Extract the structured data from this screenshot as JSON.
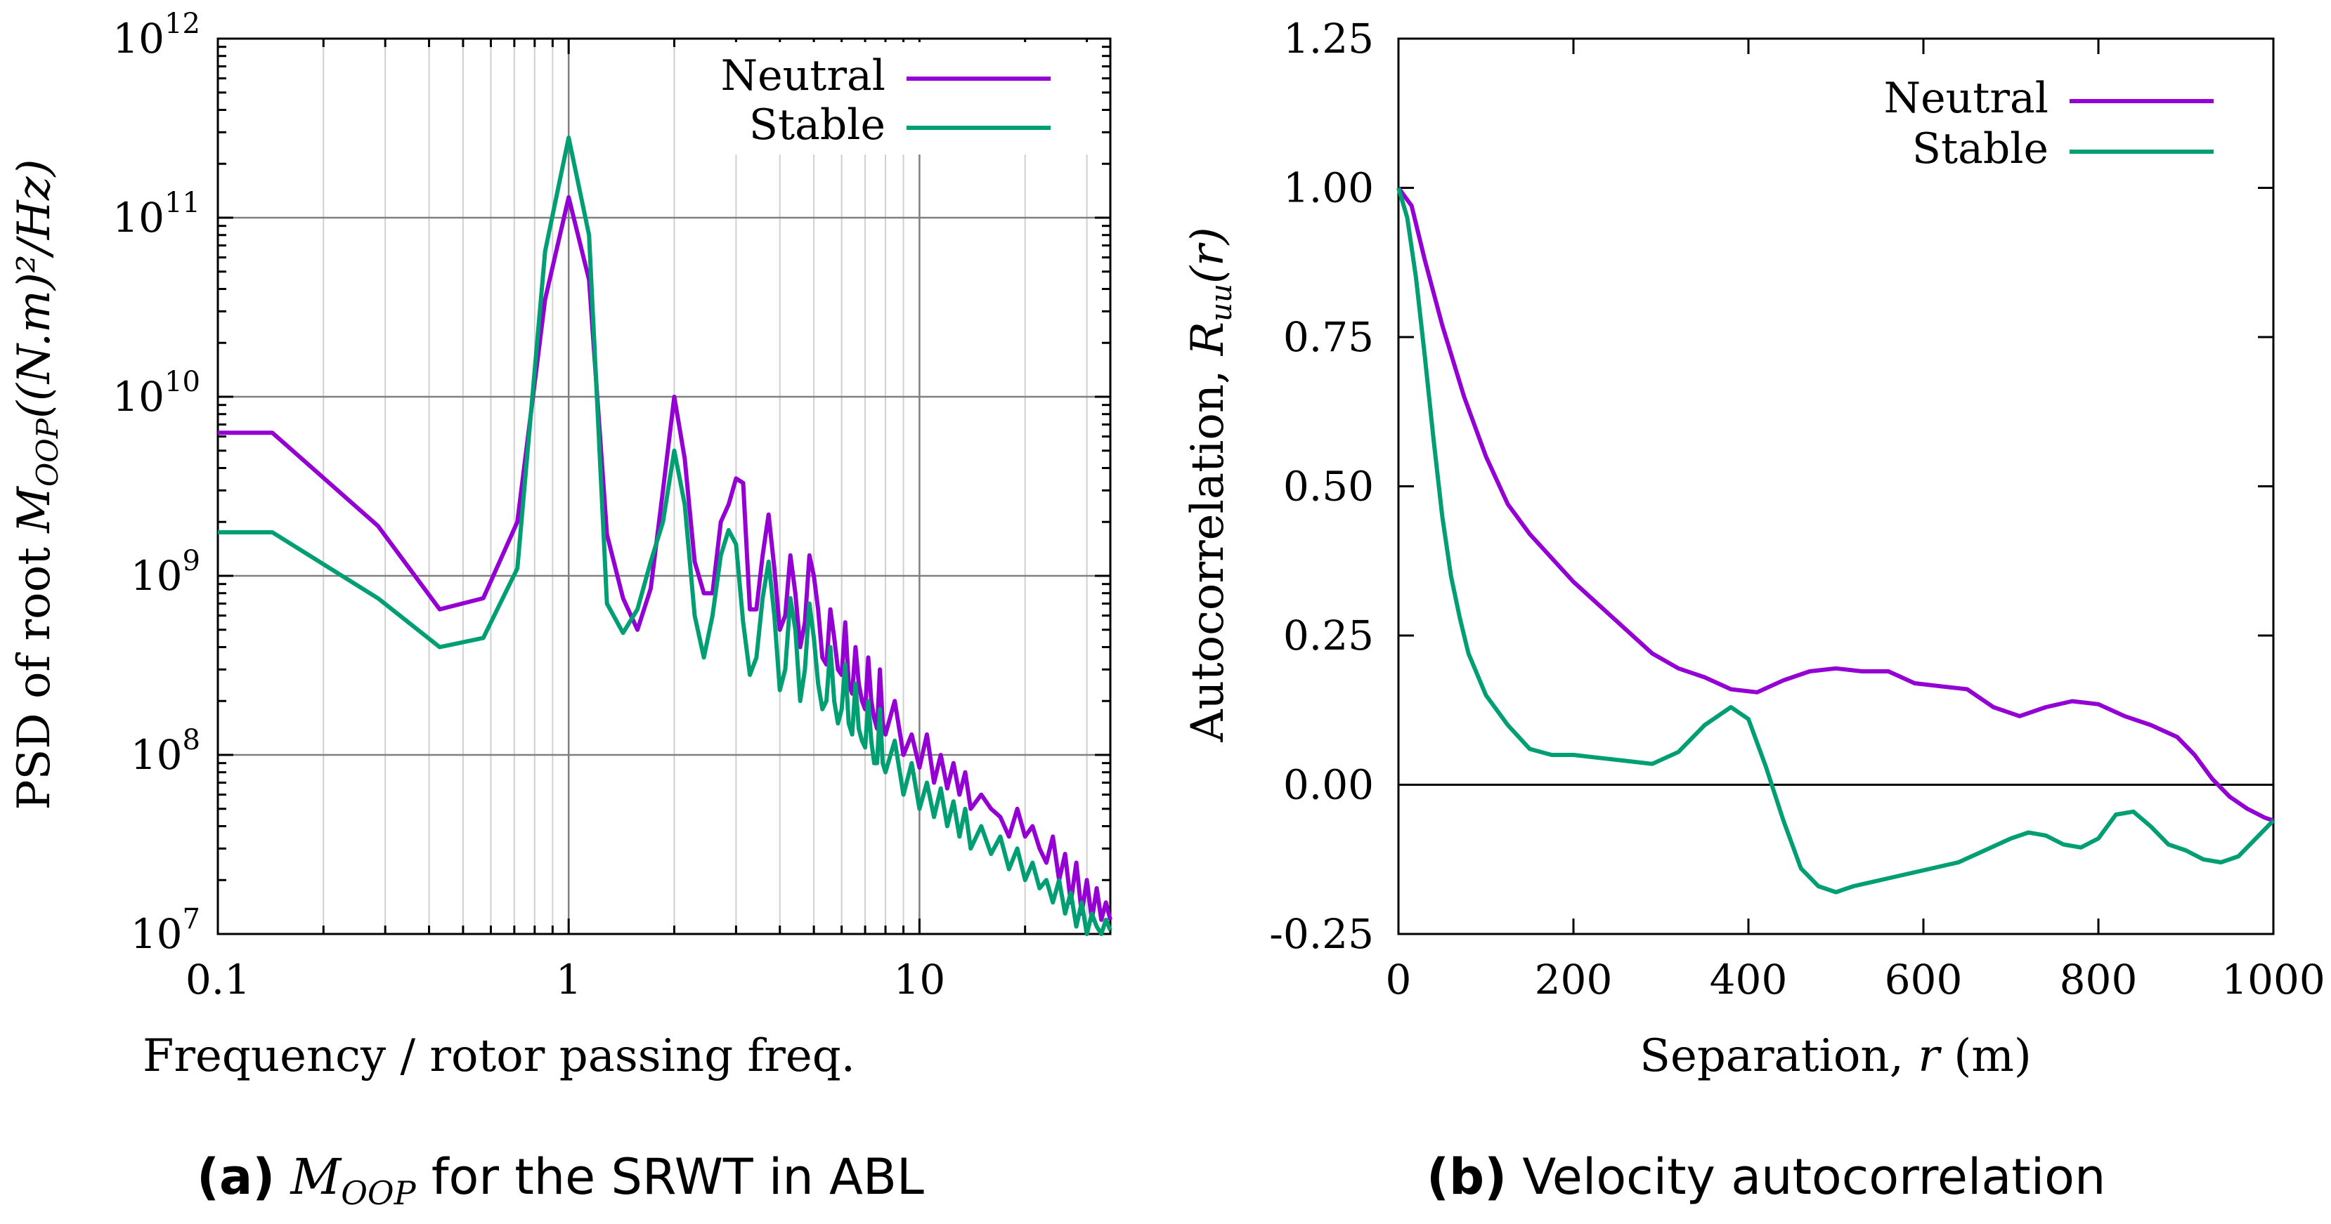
{
  "colors": {
    "neutral": "#9400d3",
    "stable": "#009e73",
    "grid": "#a0a0a0",
    "axis": "#000000"
  },
  "captions": {
    "a": {
      "tag": "(a)",
      "var": "M",
      "sub": "OOP",
      "text": "for the SRWT in ABL"
    },
    "b": {
      "tag": "(b)",
      "text": "Velocity autocorrelation"
    }
  },
  "chart_data": [
    {
      "type": "line",
      "xscale": "log",
      "yscale": "log",
      "xlabel": "Frequency / rotor passing freq.",
      "ylabel": {
        "prefix": "PSD of root ",
        "var": "M",
        "sub": "OOP",
        "unit": "((N.m)²/Hz)"
      },
      "xlim": [
        0.1,
        35
      ],
      "ylim": [
        10000000.0,
        1000000000000.0
      ],
      "xticks": [
        "0.1",
        "1",
        "10"
      ],
      "yticks": [
        {
          "base": "10",
          "exp": "7"
        },
        {
          "base": "10",
          "exp": "8"
        },
        {
          "base": "10",
          "exp": "9"
        },
        {
          "base": "10",
          "exp": "10"
        },
        {
          "base": "10",
          "exp": "11"
        },
        {
          "base": "10",
          "exp": "12"
        }
      ],
      "legend_position": "top-right",
      "series": [
        {
          "name": "Neutral",
          "color": "#9400d3",
          "x": [
            0.1,
            0.143,
            0.286,
            0.429,
            0.571,
            0.714,
            0.857,
            1.0,
            1.143,
            1.286,
            1.429,
            1.571,
            1.714,
            1.857,
            2.0,
            2.143,
            2.286,
            2.429,
            2.571,
            2.714,
            2.857,
            3.0,
            3.143,
            3.286,
            3.429,
            3.571,
            3.714,
            3.857,
            4.0,
            4.143,
            4.286,
            4.429,
            4.571,
            4.714,
            4.857,
            5.0,
            5.143,
            5.286,
            5.429,
            5.571,
            5.714,
            5.857,
            6.0,
            6.143,
            6.286,
            6.429,
            6.571,
            6.714,
            6.857,
            7.0,
            7.143,
            7.286,
            7.429,
            7.571,
            7.714,
            7.857,
            8.0,
            8.5,
            9.0,
            9.5,
            10.0,
            10.5,
            11.0,
            11.5,
            12.0,
            12.5,
            13.0,
            13.5,
            14.0,
            15.0,
            16.0,
            17.0,
            18.0,
            19.0,
            20.0,
            21.0,
            22.0,
            23.0,
            24.0,
            25.0,
            26.0,
            27.0,
            28.0,
            29.0,
            30.0,
            31.0,
            32.0,
            33.0,
            34.0,
            35.0
          ],
          "y": [
            6300000000.0,
            6300000000.0,
            1900000000.0,
            650000000.0,
            750000000.0,
            2000000000.0,
            35000000000.0,
            130000000000.0,
            45000000000.0,
            1700000000.0,
            750000000.0,
            500000000.0,
            850000000.0,
            3000000000.0,
            10000000000.0,
            4500000000.0,
            1200000000.0,
            800000000.0,
            800000000.0,
            2000000000.0,
            2500000000.0,
            3500000000.0,
            3300000000.0,
            650000000.0,
            650000000.0,
            1300000000.0,
            2200000000.0,
            1100000000.0,
            500000000.0,
            600000000.0,
            1300000000.0,
            800000000.0,
            400000000.0,
            550000000.0,
            1300000000.0,
            1000000000.0,
            650000000.0,
            350000000.0,
            320000000.0,
            650000000.0,
            450000000.0,
            300000000.0,
            280000000.0,
            550000000.0,
            250000000.0,
            220000000.0,
            400000000.0,
            250000000.0,
            200000000.0,
            180000000.0,
            350000000.0,
            200000000.0,
            160000000.0,
            140000000.0,
            300000000.0,
            150000000.0,
            130000000.0,
            200000000.0,
            100000000.0,
            130000000.0,
            85000000.0,
            130000000.0,
            70000000.0,
            100000000.0,
            65000000.0,
            90000000.0,
            60000000.0,
            80000000.0,
            50000000.0,
            60000000.0,
            50000000.0,
            45000000.0,
            35000000.0,
            50000000.0,
            35000000.0,
            40000000.0,
            30000000.0,
            25000000.0,
            35000000.0,
            20000000.0,
            28000000.0,
            15000000.0,
            25000000.0,
            13000000.0,
            20000000.0,
            12000000.0,
            18000000.0,
            12000000.0,
            15000000.0,
            12000000.0
          ]
        },
        {
          "name": "Stable",
          "color": "#009e73",
          "x": [
            0.1,
            0.143,
            0.286,
            0.429,
            0.571,
            0.714,
            0.857,
            1.0,
            1.143,
            1.286,
            1.429,
            1.571,
            1.714,
            1.857,
            2.0,
            2.143,
            2.286,
            2.429,
            2.571,
            2.714,
            2.857,
            3.0,
            3.143,
            3.286,
            3.429,
            3.571,
            3.714,
            3.857,
            4.0,
            4.143,
            4.286,
            4.429,
            4.571,
            4.714,
            4.857,
            5.0,
            5.143,
            5.286,
            5.429,
            5.571,
            5.714,
            5.857,
            6.0,
            6.143,
            6.286,
            6.429,
            6.571,
            6.714,
            6.857,
            7.0,
            7.143,
            7.286,
            7.429,
            7.571,
            7.714,
            7.857,
            8.0,
            8.5,
            9.0,
            9.5,
            10.0,
            10.5,
            11.0,
            11.5,
            12.0,
            12.5,
            13.0,
            13.5,
            14.0,
            15.0,
            16.0,
            17.0,
            18.0,
            19.0,
            20.0,
            21.0,
            22.0,
            23.0,
            24.0,
            25.0,
            26.0,
            27.0,
            28.0,
            29.0,
            30.0,
            31.0,
            32.0,
            33.0,
            34.0,
            35.0
          ],
          "y": [
            1750000000.0,
            1750000000.0,
            750000000.0,
            400000000.0,
            450000000.0,
            1100000000.0,
            65000000000.0,
            280000000000.0,
            80000000000.0,
            700000000.0,
            480000000.0,
            650000000.0,
            1200000000.0,
            2000000000.0,
            5000000000.0,
            2500000000.0,
            600000000.0,
            350000000.0,
            600000000.0,
            1300000000.0,
            1800000000.0,
            1500000000.0,
            550000000.0,
            280000000.0,
            350000000.0,
            750000000.0,
            1200000000.0,
            600000000.0,
            230000000.0,
            300000000.0,
            750000000.0,
            500000000.0,
            200000000.0,
            300000000.0,
            700000000.0,
            450000000.0,
            250000000.0,
            180000000.0,
            200000000.0,
            400000000.0,
            200000000.0,
            150000000.0,
            180000000.0,
            320000000.0,
            150000000.0,
            130000000.0,
            250000000.0,
            140000000.0,
            120000000.0,
            110000000.0,
            200000000.0,
            120000000.0,
            90000000.0,
            90000000.0,
            180000000.0,
            90000000.0,
            80000000.0,
            120000000.0,
            60000000.0,
            90000000.0,
            50000000.0,
            70000000.0,
            45000000.0,
            65000000.0,
            40000000.0,
            55000000.0,
            35000000.0,
            50000000.0,
            30000000.0,
            40000000.0,
            28000000.0,
            35000000.0,
            23000000.0,
            30000000.0,
            20000000.0,
            25000000.0,
            18000000.0,
            20000000.0,
            15000000.0,
            20000000.0,
            13000000.0,
            17000000.0,
            11000000.0,
            15000000.0,
            10000000.0,
            13000000.0,
            11000000.0,
            10000000.0,
            12000000.0,
            10500000.0
          ]
        }
      ]
    },
    {
      "type": "line",
      "xlabel": {
        "prefix": "Separation, ",
        "var": "r",
        "suffix": " (m)"
      },
      "ylabel": {
        "prefix": "Autocorrelation, ",
        "var": "R",
        "sub": "uu",
        "suffix": "(r)"
      },
      "xlim": [
        0,
        1000
      ],
      "ylim": [
        -0.25,
        1.25
      ],
      "xticks": [
        "0",
        "200",
        "400",
        "600",
        "800",
        "1000"
      ],
      "yticks": [
        "-0.25",
        "0.00",
        "0.25",
        "0.50",
        "0.75",
        "1.00",
        "1.25"
      ],
      "legend_position": "top-right",
      "series": [
        {
          "name": "Neutral",
          "color": "#9400d3",
          "x": [
            0,
            15,
            30,
            50,
            75,
            100,
            125,
            150,
            175,
            200,
            230,
            260,
            290,
            320,
            350,
            380,
            410,
            440,
            470,
            500,
            530,
            560,
            590,
            620,
            650,
            680,
            710,
            740,
            770,
            800,
            830,
            860,
            890,
            910,
            930,
            950,
            970,
            990,
            1000
          ],
          "y": [
            1.0,
            0.97,
            0.88,
            0.77,
            0.65,
            0.55,
            0.47,
            0.42,
            0.38,
            0.34,
            0.3,
            0.26,
            0.22,
            0.195,
            0.18,
            0.16,
            0.155,
            0.175,
            0.19,
            0.195,
            0.19,
            0.19,
            0.17,
            0.165,
            0.16,
            0.13,
            0.115,
            0.13,
            0.14,
            0.135,
            0.115,
            0.1,
            0.08,
            0.05,
            0.01,
            -0.02,
            -0.04,
            -0.055,
            -0.06
          ]
        },
        {
          "name": "Stable",
          "color": "#009e73",
          "x": [
            0,
            10,
            20,
            30,
            40,
            50,
            60,
            70,
            80,
            100,
            125,
            150,
            175,
            200,
            230,
            260,
            290,
            320,
            350,
            380,
            400,
            420,
            440,
            460,
            480,
            500,
            520,
            550,
            580,
            610,
            640,
            670,
            700,
            720,
            740,
            760,
            780,
            800,
            820,
            840,
            860,
            880,
            900,
            920,
            940,
            960,
            980,
            1000
          ],
          "y": [
            1.0,
            0.95,
            0.85,
            0.72,
            0.58,
            0.45,
            0.35,
            0.28,
            0.22,
            0.15,
            0.1,
            0.06,
            0.05,
            0.05,
            0.045,
            0.04,
            0.035,
            0.055,
            0.1,
            0.13,
            0.11,
            0.03,
            -0.06,
            -0.14,
            -0.17,
            -0.18,
            -0.17,
            -0.16,
            -0.15,
            -0.14,
            -0.13,
            -0.11,
            -0.09,
            -0.08,
            -0.085,
            -0.1,
            -0.105,
            -0.09,
            -0.05,
            -0.045,
            -0.07,
            -0.1,
            -0.11,
            -0.125,
            -0.13,
            -0.12,
            -0.09,
            -0.06
          ]
        }
      ]
    }
  ]
}
